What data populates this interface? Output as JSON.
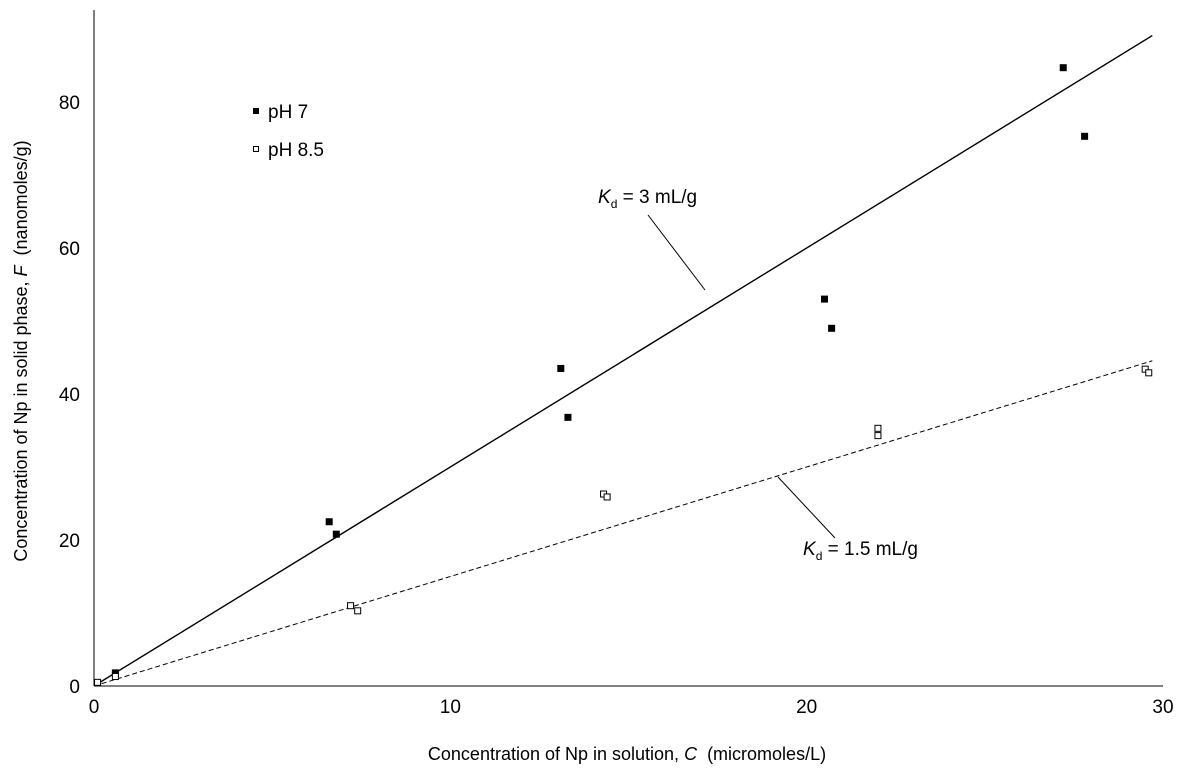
{
  "chart_data": {
    "type": "scatter",
    "xlabel": {
      "prefix": "Concentration of Np in solution, ",
      "symbol": "C",
      "suffix": "  (micromoles/L)"
    },
    "ylabel": {
      "prefix": "Concentration of Np in solid phase, ",
      "symbol": "F",
      "suffix": "  (nanomoles/g)"
    },
    "xlim": [
      0,
      30
    ],
    "ylim": [
      0,
      90
    ],
    "xticks": [
      0,
      10,
      20,
      30
    ],
    "yticks": [
      0,
      20,
      40,
      60,
      80
    ],
    "grid": false,
    "legend_position": "top-left",
    "series": [
      {
        "name": "pH 7",
        "marker": "filled-square",
        "color": "#000000",
        "points": [
          [
            0.6,
            1.8
          ],
          [
            6.6,
            22.5
          ],
          [
            6.8,
            20.8
          ],
          [
            13.1,
            43.5
          ],
          [
            13.3,
            36.8
          ],
          [
            20.5,
            53.0
          ],
          [
            20.7,
            49.0
          ],
          [
            27.2,
            84.7
          ],
          [
            27.8,
            75.3
          ]
        ]
      },
      {
        "name": "pH 8.5",
        "marker": "open-square",
        "color": "#000000",
        "points": [
          [
            0.1,
            0.5
          ],
          [
            0.6,
            1.3
          ],
          [
            7.2,
            11.0
          ],
          [
            7.4,
            10.3
          ],
          [
            14.3,
            26.3
          ],
          [
            14.4,
            25.9
          ],
          [
            22.0,
            35.3
          ],
          [
            22.0,
            34.3
          ],
          [
            29.5,
            43.4
          ],
          [
            29.6,
            42.9
          ]
        ]
      }
    ],
    "fit_lines": [
      {
        "label_symbol": "K",
        "label_subscript": "d",
        "label_text": " = 3 mL/g",
        "slope": 3.0,
        "x_range": [
          0,
          29.7
        ],
        "style": "solid"
      },
      {
        "label_symbol": "K",
        "label_subscript": "d",
        "label_text": " = 1.5 mL/g",
        "slope": 1.5,
        "x_range": [
          0,
          29.7
        ],
        "style": "dashed"
      }
    ]
  }
}
